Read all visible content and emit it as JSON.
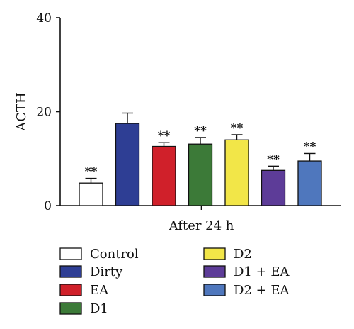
{
  "chart_data": {
    "type": "bar",
    "ylabel": "ACTH",
    "xlabel": "After 24 h",
    "ylim": [
      0,
      40
    ],
    "yticks": [
      0,
      20,
      40
    ],
    "grid": false,
    "legend_position": "bottom",
    "legend_columns": 2,
    "categories": [
      "Control",
      "Dirty",
      "EA",
      "D1",
      "D2",
      "D1 + EA",
      "D2 + EA"
    ],
    "values": [
      4.8,
      17.5,
      12.6,
      13.1,
      14.0,
      7.5,
      9.5
    ],
    "errors": [
      1.0,
      2.2,
      0.8,
      1.4,
      1.1,
      0.9,
      1.6
    ],
    "significance": [
      "**",
      "",
      "**",
      "**",
      "**",
      "**",
      "**"
    ],
    "colors": [
      "#ffffff",
      "#2e3e94",
      "#d0202a",
      "#3c7a38",
      "#f2e648",
      "#5d3c98",
      "#4f77bd"
    ]
  }
}
